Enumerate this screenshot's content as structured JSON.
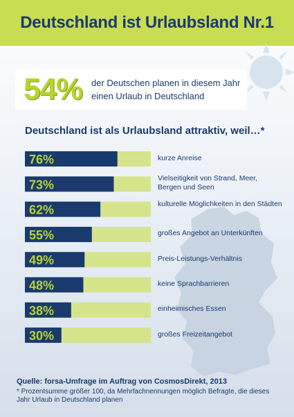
{
  "header": {
    "title": "Deutschland ist Urlaubsland Nr.1"
  },
  "highlight": {
    "percent": "54%",
    "text": "der Deutschen planen in diesem Jahr einen Urlaub in Deutschland"
  },
  "colors": {
    "header_bg": "#c8dd52",
    "bar_dark": "#1a3a6e",
    "bar_light": "#d6e48c",
    "text": "#1a3a6e",
    "accent": "#b9d331"
  },
  "chart_data": {
    "type": "bar",
    "orientation": "horizontal",
    "title": "Deutschland ist als Urlaubsland attraktiv, weil…*",
    "categories": [
      "kurze Anreise",
      "Vielseitigkeit von Strand, Meer, Bergen und Seen",
      "kulturelle Möglichkeiten in den Städten",
      "großes Angebot an Unterkünften",
      "Preis-Leistungs-Verhältnis",
      "keine Sprachbarrieren",
      "einheimisches Essen",
      "großes Freizeitangebot"
    ],
    "values": [
      76,
      73,
      62,
      55,
      49,
      48,
      38,
      30
    ],
    "value_labels": [
      "76%",
      "73%",
      "62%",
      "55%",
      "49%",
      "48%",
      "38%",
      "30%"
    ],
    "xlim": [
      0,
      100
    ],
    "grid": false,
    "legend": "none"
  },
  "source": {
    "text": "Quelle: forsa-Umfrage im Auftrag von CosmosDirekt, 2013"
  },
  "footnote": {
    "text": "* Prozentsumme größer 100, da Mehrfachnennungen möglich Befragte, die dieses Jahr Urlaub in Deutschland planen"
  }
}
